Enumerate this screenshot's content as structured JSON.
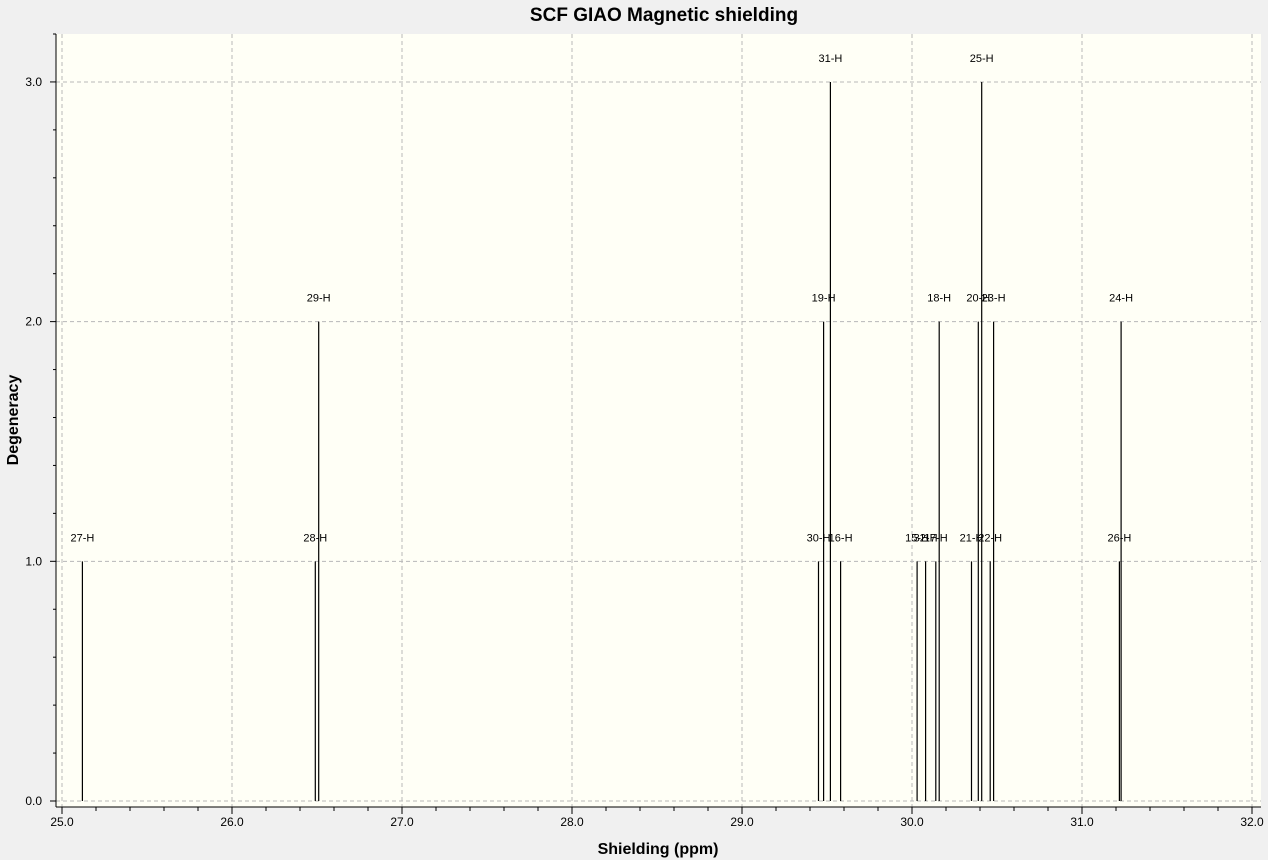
{
  "chart_data": {
    "type": "bar",
    "title": "SCF GIAO Magnetic shielding",
    "xlabel": "Shielding (ppm)",
    "ylabel": "Degeneracy",
    "xlim": [
      25.0,
      32.0
    ],
    "ylim": [
      0.0,
      3.2
    ],
    "x_ticks": [
      {
        "value": 25.0,
        "label": "25.0"
      },
      {
        "value": 26.0,
        "label": "26.0"
      },
      {
        "value": 27.0,
        "label": "27.0"
      },
      {
        "value": 28.0,
        "label": "28.0"
      },
      {
        "value": 29.0,
        "label": "29.0"
      },
      {
        "value": 30.0,
        "label": "30.0"
      },
      {
        "value": 31.0,
        "label": "31.0"
      },
      {
        "value": 32.0,
        "label": "32.0"
      }
    ],
    "y_ticks": [
      {
        "value": 0.0,
        "label": "0.0"
      },
      {
        "value": 1.0,
        "label": "1.0"
      },
      {
        "value": 2.0,
        "label": "2.0"
      },
      {
        "value": 3.0,
        "label": "3.0"
      }
    ],
    "grid": true,
    "plot_background": "#fffff6",
    "stick_color": "#000000",
    "peaks": [
      {
        "label": "27-H",
        "x": 25.12,
        "y": 1
      },
      {
        "label": "28-H",
        "x": 26.49,
        "y": 1
      },
      {
        "label": "29-H",
        "x": 26.51,
        "y": 2
      },
      {
        "label": "30-H",
        "x": 29.45,
        "y": 1
      },
      {
        "label": "19-H",
        "x": 29.48,
        "y": 2
      },
      {
        "label": "31-H",
        "x": 29.52,
        "y": 3
      },
      {
        "label": "16-H",
        "x": 29.58,
        "y": 1
      },
      {
        "label": "15-H",
        "x": 30.03,
        "y": 1
      },
      {
        "label": "32-H",
        "x": 30.08,
        "y": 1
      },
      {
        "label": "17-H",
        "x": 30.14,
        "y": 1
      },
      {
        "label": "18-H",
        "x": 30.16,
        "y": 2
      },
      {
        "label": "21-H",
        "x": 30.35,
        "y": 1
      },
      {
        "label": "20-H",
        "x": 30.39,
        "y": 2
      },
      {
        "label": "25-H",
        "x": 30.41,
        "y": 3
      },
      {
        "label": "22-H",
        "x": 30.46,
        "y": 1
      },
      {
        "label": "23-H",
        "x": 30.48,
        "y": 2
      },
      {
        "label": "26-H",
        "x": 31.22,
        "y": 1
      },
      {
        "label": "24-H",
        "x": 31.23,
        "y": 2
      }
    ]
  }
}
